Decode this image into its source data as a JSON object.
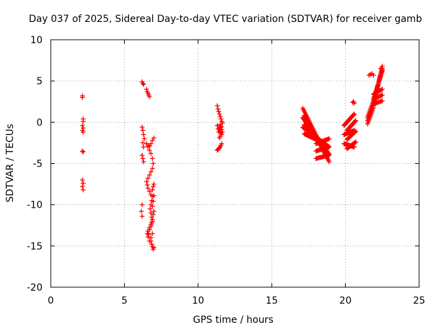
{
  "chart_data": {
    "type": "scatter",
    "title": "Day 037 of 2025, Sidereal Day-to-day VTEC variation (SDTVAR) for receiver gamb",
    "xlabel": "GPS time / hours",
    "ylabel": "SDTVAR / TECUs",
    "xlim": [
      0,
      25
    ],
    "ylim": [
      -20,
      10
    ],
    "xticks": [
      0,
      5,
      10,
      15,
      20,
      25
    ],
    "yticks": [
      -20,
      -15,
      -10,
      -5,
      0,
      5,
      10
    ],
    "xtick_labels": [
      "0",
      "5",
      "10",
      "15",
      "20",
      "25"
    ],
    "ytick_labels": [
      "-20",
      "-15",
      "-10",
      "-5",
      "0",
      "5",
      "10"
    ],
    "grid": true,
    "marker": "+",
    "color": "#ff0000",
    "segments": [
      {
        "x": [
          2.15,
          2.15,
          2.2,
          2.2,
          2.15,
          2.2,
          2.15,
          2.2,
          2.15,
          2.2,
          2.15,
          2.2,
          2.15,
          2.2
        ],
        "y": [
          3.2,
          3.0,
          0.4,
          0.1,
          -0.4,
          -0.7,
          -1.0,
          -1.2,
          -3.5,
          -3.6,
          -7.0,
          -7.4,
          -7.8,
          -8.2
        ]
      },
      {
        "x": [
          6.2,
          6.25,
          6.3,
          6.5,
          6.55,
          6.6,
          6.65,
          6.7
        ],
        "y": [
          4.9,
          4.7,
          4.6,
          4.0,
          3.7,
          3.5,
          3.3,
          3.1
        ]
      },
      {
        "x": [
          6.2,
          6.25,
          6.3,
          6.35,
          6.25,
          6.3,
          6.2,
          6.25,
          6.3,
          6.2,
          6.15,
          6.2
        ],
        "y": [
          -0.6,
          -1.0,
          -1.5,
          -2.0,
          -2.5,
          -3.0,
          -4.0,
          -4.4,
          -4.8,
          -10.0,
          -10.8,
          -11.4
        ]
      },
      {
        "x": [
          6.5,
          6.6,
          6.7,
          6.8,
          6.9,
          7.0,
          6.6,
          6.7,
          6.8,
          6.9,
          6.95,
          6.9,
          6.8,
          6.7,
          6.6,
          6.5,
          6.55,
          6.6,
          6.7,
          6.8,
          6.9,
          6.95,
          7.0,
          6.9,
          6.85,
          6.8,
          6.75,
          6.8,
          6.85,
          6.9,
          6.95,
          7.0,
          6.9,
          6.8,
          6.7,
          6.6,
          6.65,
          6.7,
          6.8,
          6.85,
          6.9,
          6.95,
          7.0,
          6.9,
          6.8,
          6.7,
          6.6,
          6.55,
          6.8,
          6.85,
          6.9,
          6.95,
          7.0
        ],
        "y": [
          -2.6,
          -2.8,
          -2.9,
          -2.6,
          -2.2,
          -1.9,
          -3.0,
          -3.4,
          -3.8,
          -4.4,
          -5.0,
          -5.6,
          -6.0,
          -6.4,
          -6.8,
          -7.2,
          -7.6,
          -8.0,
          -8.4,
          -8.8,
          -8.2,
          -7.8,
          -7.5,
          -9.0,
          -9.5,
          -10.0,
          -10.5,
          -11.0,
          -11.5,
          -10.2,
          -9.6,
          -8.9,
          -12.0,
          -12.4,
          -12.8,
          -13.2,
          -13.6,
          -13.0,
          -12.6,
          -12.2,
          -11.8,
          -11.2,
          -10.8,
          -13.5,
          -14.0,
          -14.4,
          -13.9,
          -13.5,
          -14.4,
          -14.8,
          -15.1,
          -15.4,
          -15.2
        ]
      },
      {
        "x": [
          11.3,
          11.35,
          11.4,
          11.45,
          11.5,
          11.55,
          11.6,
          11.65,
          11.55,
          11.5,
          11.45,
          11.5,
          11.55,
          11.6,
          11.5,
          11.45,
          11.4,
          11.35,
          11.3,
          11.5,
          11.55,
          11.6,
          11.65,
          11.6,
          11.55,
          11.5,
          11.45,
          11.4,
          11.35,
          11.3
        ],
        "y": [
          2.0,
          1.6,
          1.3,
          1.0,
          0.7,
          0.4,
          0.1,
          -0.1,
          -0.5,
          -0.7,
          -0.9,
          -1.1,
          -1.3,
          -1.5,
          -1.7,
          -1.9,
          -1.2,
          -0.8,
          -0.4,
          -0.3,
          -0.6,
          -0.9,
          -1.2,
          -2.6,
          -2.8,
          -3.0,
          -3.1,
          -3.2,
          -3.3,
          -3.4
        ]
      }
    ],
    "bands": [
      {
        "x0": 17.1,
        "x1": 18.9,
        "ya0": 1.7,
        "ya1": -4.8,
        "yb0": -0.6,
        "yb1": -3.0,
        "n": 40
      },
      {
        "x0": 17.2,
        "x1": 18.6,
        "ya0": 0.8,
        "ya1": -3.8,
        "yb0": -1.4,
        "yb1": -2.6,
        "n": 34
      },
      {
        "x0": 18.0,
        "x1": 18.9,
        "ya0": -2.6,
        "ya1": -2.0,
        "yb0": -4.4,
        "yb1": -4.0,
        "n": 16
      },
      {
        "x0": 19.9,
        "x1": 20.6,
        "ya0": -0.4,
        "ya1": 1.0,
        "yb0": -2.6,
        "yb1": -3.0,
        "n": 22
      },
      {
        "x0": 20.1,
        "x1": 20.7,
        "ya0": -1.0,
        "ya1": 0.2,
        "yb0": -3.2,
        "yb1": -2.4,
        "n": 18
      },
      {
        "x0": 21.5,
        "x1": 21.9,
        "ya0": -0.2,
        "ya1": 1.8,
        "yb0": 0.6,
        "yb1": 2.6,
        "n": 12
      },
      {
        "x0": 21.9,
        "x1": 22.5,
        "ya0": 2.0,
        "ya1": 6.8,
        "yb0": 2.8,
        "yb1": 6.2,
        "n": 22
      },
      {
        "x0": 21.9,
        "x1": 22.5,
        "ya0": 2.2,
        "ya1": 2.6,
        "yb0": 3.4,
        "yb1": 4.0,
        "n": 10
      }
    ],
    "extras": {
      "x": [
        20.5,
        20.55,
        20.6,
        21.6,
        21.7,
        21.8,
        21.9,
        22.4,
        22.5
      ],
      "y": [
        2.4,
        2.5,
        2.3,
        5.7,
        5.8,
        5.9,
        5.7,
        6.5,
        6.3
      ]
    }
  }
}
